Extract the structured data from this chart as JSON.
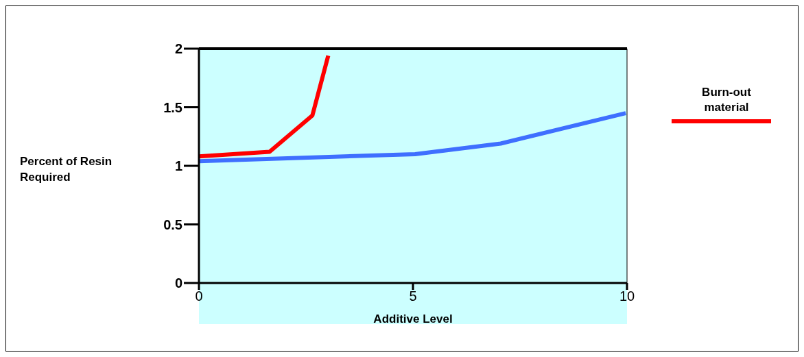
{
  "chart_data": {
    "type": "line",
    "xlabel": "Additive Level",
    "ylabel": "Percent of Resin Required",
    "xlim": [
      0,
      10
    ],
    "xticks": [
      0,
      5,
      10
    ],
    "ylim": [
      0,
      2
    ],
    "yticks": [
      0,
      0.5,
      1,
      1.5,
      2
    ],
    "grid": false,
    "legend": "right",
    "marker": "none",
    "line_style": "solid",
    "series": [
      {
        "name": "Burn-out material",
        "color": "#ff0000",
        "x": [
          0,
          1.65,
          2.65,
          3.02
        ],
        "values": [
          1.08,
          1.12,
          1.43,
          1.94
        ]
      },
      {
        "color": "#3f6fff",
        "x": [
          0,
          5.05,
          7.05,
          9.97
        ],
        "values": [
          1.04,
          1.1,
          1.19,
          1.45
        ]
      }
    ]
  }
}
